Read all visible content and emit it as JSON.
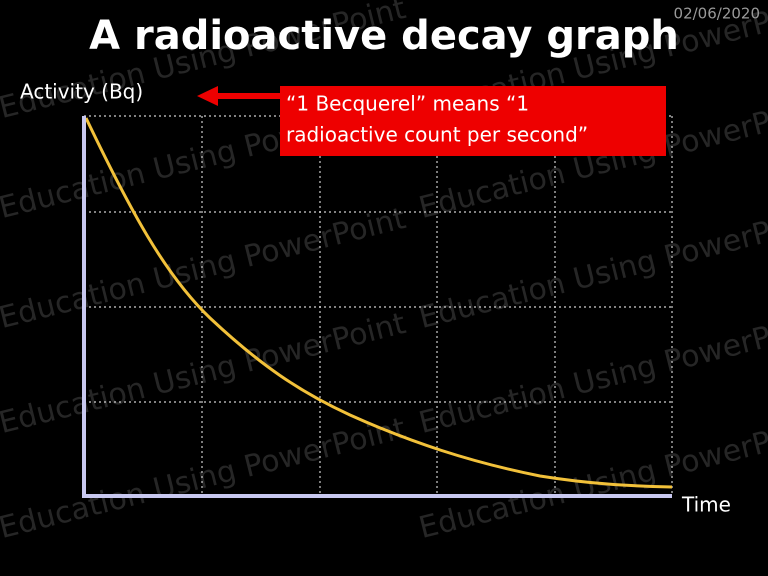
{
  "date": "02/06/2020",
  "title": "A radioactive decay graph",
  "y_axis_label": "Activity (Bq)",
  "x_axis_label": "Time",
  "callout": {
    "line1": "“1 Becquerel” means “1",
    "line2": "radioactive count per second”"
  },
  "watermark": "Education Using PowerPoint"
}
